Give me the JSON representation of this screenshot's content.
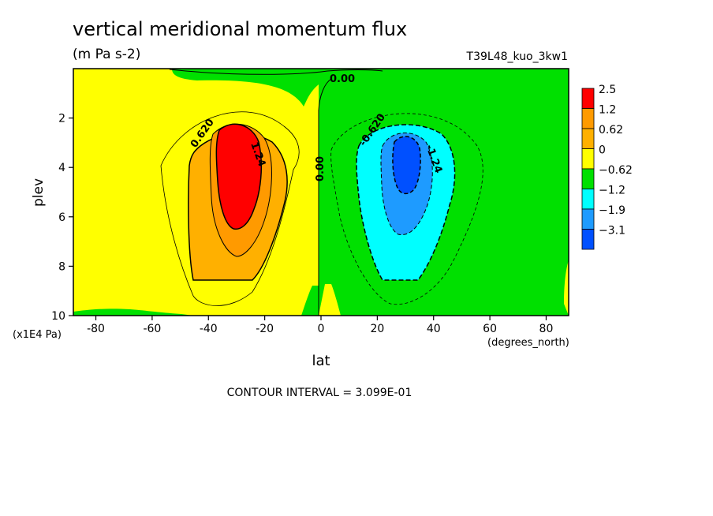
{
  "chart_data": {
    "type": "heatmap",
    "title": "vertical meridional momentum flux",
    "units": "(m Pa s-2)",
    "dataset": "T39L48_kuo_3kw1",
    "xlabel": "lat",
    "xunits": "(degrees_north)",
    "ylabel": "plev",
    "yunits": "(x1E4 Pa)",
    "xlim": [
      -88,
      88
    ],
    "ylim": [
      10,
      0
    ],
    "x_ticks": [
      "-80",
      "-60",
      "-40",
      "-20",
      "0",
      "20",
      "40",
      "60",
      "80"
    ],
    "y_ticks": [
      "2",
      "4",
      "6",
      "8",
      "10"
    ],
    "footer": "CONTOUR INTERVAL = 3.099E-01",
    "legend": {
      "labels": [
        "2.5",
        "1.2",
        "0.62",
        "0",
        "−0.62",
        "−1.2",
        "−1.9",
        "−3.1"
      ],
      "colors": [
        "#ff0000",
        "#ff9a00",
        "#ffb000",
        "#ffff00",
        "#00e000",
        "#00ffff",
        "#1e9bff",
        "#0050ff"
      ],
      "placement": "right"
    },
    "contour_labels": [
      "0.620",
      "1.24",
      "0.00",
      "0.00",
      "-0.620",
      "-1.24"
    ],
    "extrema": [
      {
        "name": "positive max",
        "lat": -30,
        "plev": 4.3,
        "level_min": 1.86
      },
      {
        "name": "negative min",
        "lat": 30,
        "plev": 4.0,
        "level_max": -2.48
      }
    ]
  }
}
